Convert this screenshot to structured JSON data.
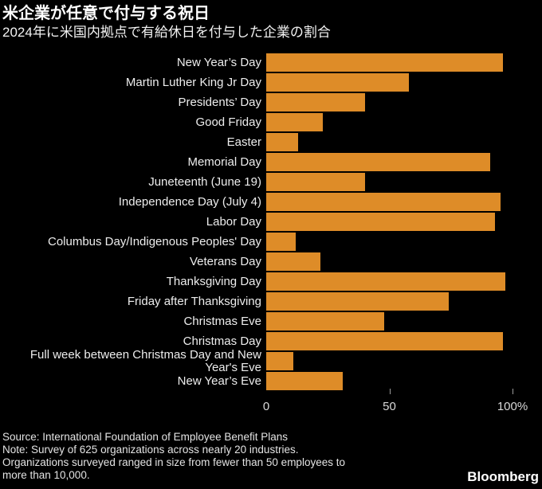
{
  "header": {
    "title": "米企業が任意で付与する祝日",
    "subtitle": "2024年に米国内拠点で有給休日を付与した企業の割合"
  },
  "chart_data": {
    "type": "bar",
    "orientation": "horizontal",
    "unit": "%",
    "categories": [
      "New Year’s Day",
      "Martin Luther King Jr Day",
      "Presidents’ Day",
      "Good Friday",
      "Easter",
      "Memorial Day",
      "Juneteenth (June 19)",
      "Independence Day (July 4)",
      "Labor Day",
      "Columbus Day/Indigenous Peoples' Day",
      "Veterans Day",
      "Thanksgiving Day",
      "Friday after Thanksgiving",
      "Christmas Eve",
      "Christmas Day",
      "Full week between Christmas Day and New\nYear's Eve",
      "New Year’s Eve"
    ],
    "values": [
      96,
      58,
      40,
      23,
      13,
      91,
      40,
      95,
      93,
      12,
      22,
      97,
      74,
      48,
      96,
      11,
      31
    ],
    "xlim": [
      0,
      100
    ],
    "axis": {
      "tick_labels": [
        "0",
        "50",
        "100%"
      ],
      "tick_positions": [
        0,
        50,
        100
      ]
    },
    "grid": false,
    "legend": false
  },
  "colors": {
    "background": "#000000",
    "bar": "#DE8C28",
    "title_text": "#FFFFFF",
    "label_text": "#EDEDED",
    "axis_text": "#D9D9D9",
    "tick": "#9B9B9B",
    "footer_text": "#E3E3E3"
  },
  "footer": {
    "lines": [
      "Source: International Foundation of Employee Benefit Plans",
      "Note: Survey of 625 organizations across nearly 20 industries.",
      "Organizations surveyed ranged in size from fewer than 50 employees to",
      "more than 10,000."
    ],
    "logo": "Bloomberg"
  }
}
